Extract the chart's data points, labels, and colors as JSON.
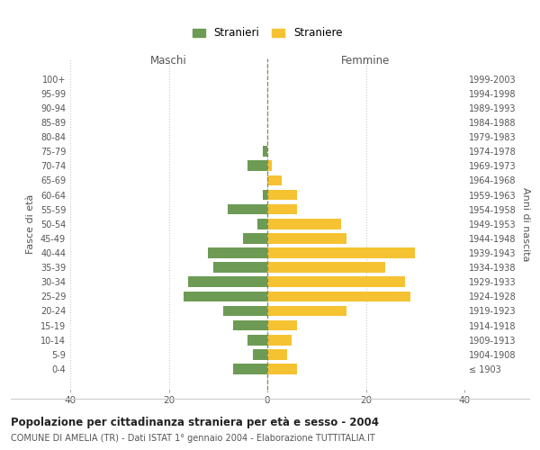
{
  "age_groups": [
    "100+",
    "95-99",
    "90-94",
    "85-89",
    "80-84",
    "75-79",
    "70-74",
    "65-69",
    "60-64",
    "55-59",
    "50-54",
    "45-49",
    "40-44",
    "35-39",
    "30-34",
    "25-29",
    "20-24",
    "15-19",
    "10-14",
    "5-9",
    "0-4"
  ],
  "birth_years": [
    "≤ 1903",
    "1904-1908",
    "1909-1913",
    "1914-1918",
    "1919-1923",
    "1924-1928",
    "1929-1933",
    "1934-1938",
    "1939-1943",
    "1944-1948",
    "1949-1953",
    "1954-1958",
    "1959-1963",
    "1964-1968",
    "1969-1973",
    "1974-1978",
    "1979-1983",
    "1984-1988",
    "1989-1993",
    "1994-1998",
    "1999-2003"
  ],
  "maschi": [
    0,
    0,
    0,
    0,
    0,
    1,
    4,
    0,
    1,
    8,
    2,
    5,
    12,
    11,
    16,
    17,
    9,
    7,
    4,
    3,
    7
  ],
  "femmine": [
    0,
    0,
    0,
    0,
    0,
    0,
    1,
    3,
    6,
    6,
    15,
    16,
    30,
    24,
    28,
    29,
    16,
    6,
    5,
    4,
    6
  ],
  "maschi_color": "#6d9b55",
  "femmine_color": "#f5c231",
  "background_color": "#ffffff",
  "grid_color": "#cccccc",
  "center_line_color": "#888855",
  "title": "Popolazione per cittadinanza straniera per età e sesso - 2004",
  "subtitle": "COMUNE DI AMELIA (TR) - Dati ISTAT 1° gennaio 2004 - Elaborazione TUTTITALIA.IT",
  "xlabel_left": "Maschi",
  "xlabel_right": "Femmine",
  "ylabel_left": "Fasce di età",
  "ylabel_right": "Anni di nascita",
  "xlim": 40,
  "legend_maschi": "Stranieri",
  "legend_femmine": "Straniere"
}
